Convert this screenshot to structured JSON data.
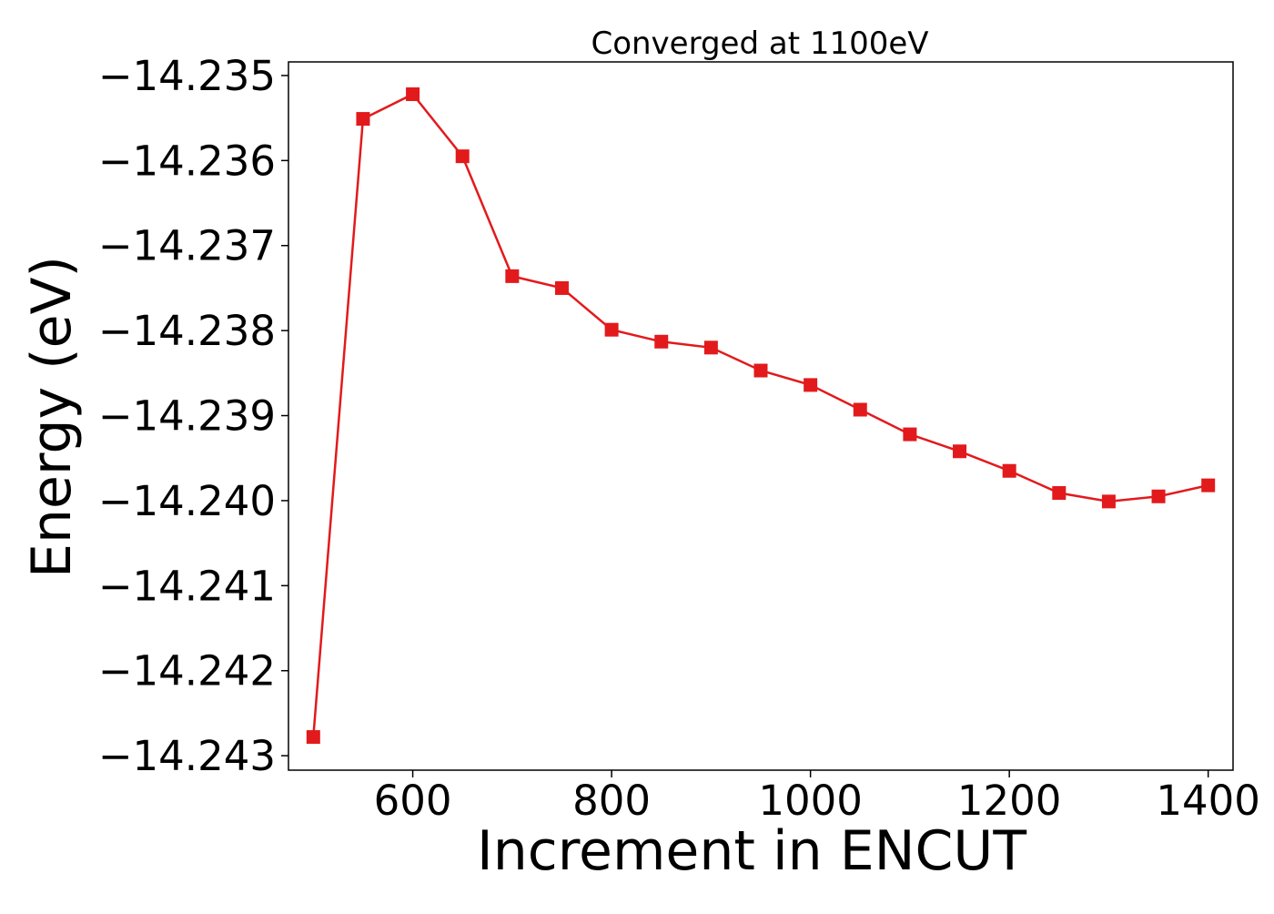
{
  "chart_data": {
    "type": "line",
    "title": "Converged at 1100eV",
    "xlabel": "Increment in ENCUT",
    "ylabel": "Energy (eV)",
    "x": [
      500,
      550,
      600,
      650,
      700,
      750,
      800,
      850,
      900,
      950,
      1000,
      1050,
      1100,
      1150,
      1200,
      1250,
      1300,
      1350,
      1400
    ],
    "series": [
      {
        "values": [
          -14.24278,
          -14.23551,
          -14.23522,
          -14.23595,
          -14.23736,
          -14.2375,
          -14.23799,
          -14.23813,
          -14.2382,
          -14.23847,
          -14.23864,
          -14.23893,
          -14.23922,
          -14.23942,
          -14.23965,
          -14.23991,
          -14.24001,
          -14.23995,
          -14.23982
        ],
        "color": "#e31a1c",
        "marker": "square"
      }
    ],
    "xlim": [
      475,
      1425
    ],
    "ylim": [
      -14.24317,
      -14.23484
    ],
    "xticks": [
      600,
      800,
      1000,
      1200,
      1400
    ],
    "xtick_labels": [
      "600",
      "800",
      "1000",
      "1200",
      "1400"
    ],
    "yticks": [
      -14.235,
      -14.236,
      -14.237,
      -14.238,
      -14.239,
      -14.24,
      -14.241,
      -14.242,
      -14.243
    ],
    "ytick_labels": [
      "−14.235",
      "−14.236",
      "−14.237",
      "−14.238",
      "−14.239",
      "−14.240",
      "−14.241",
      "−14.242",
      "−14.243"
    ],
    "grid": false,
    "legend": "none"
  }
}
